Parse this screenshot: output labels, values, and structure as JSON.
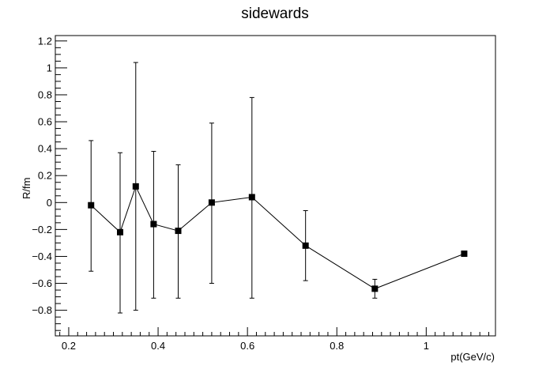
{
  "chart_data": {
    "type": "scatter",
    "title": "sidewards",
    "xlabel": "pt(GeV/c)",
    "ylabel": "R/fm",
    "xlim": [
      0.17,
      1.155
    ],
    "ylim": [
      -0.99,
      1.24
    ],
    "x_ticks": [
      0.2,
      0.4,
      0.6,
      0.8,
      1.0
    ],
    "x_tick_labels": [
      "0.2",
      "0.4",
      "0.6",
      "0.8",
      "1"
    ],
    "y_ticks": [
      -0.8,
      -0.6,
      -0.4,
      -0.2,
      0,
      0.2,
      0.4,
      0.6,
      0.8,
      1.0,
      1.2
    ],
    "y_tick_labels": [
      "−0.8",
      "−0.6",
      "−0.4",
      "−0.2",
      "0",
      "0.2",
      "0.4",
      "0.6",
      "0.8",
      "1",
      "1.2"
    ],
    "grid": false,
    "marker": "square",
    "connected": true,
    "series": [
      {
        "points": [
          {
            "x": 0.25,
            "y": -0.02,
            "err_low": 0.49,
            "err_high": 0.48
          },
          {
            "x": 0.315,
            "y": -0.22,
            "err_low": 0.6,
            "err_high": 0.59
          },
          {
            "x": 0.35,
            "y": 0.12,
            "err_low": 0.92,
            "err_high": 0.92
          },
          {
            "x": 0.39,
            "y": -0.16,
            "err_low": 0.55,
            "err_high": 0.54
          },
          {
            "x": 0.445,
            "y": -0.21,
            "err_low": 0.5,
            "err_high": 0.49
          },
          {
            "x": 0.52,
            "y": 0.0,
            "err_low": 0.6,
            "err_high": 0.59
          },
          {
            "x": 0.61,
            "y": 0.04,
            "err_low": 0.75,
            "err_high": 0.74
          },
          {
            "x": 0.73,
            "y": -0.32,
            "err_low": 0.26,
            "err_high": 0.26
          },
          {
            "x": 0.885,
            "y": -0.64,
            "err_low": 0.07,
            "err_high": 0.07
          },
          {
            "x": 1.085,
            "y": -0.38,
            "err_low": 0.0,
            "err_high": 0.0
          }
        ]
      }
    ]
  }
}
